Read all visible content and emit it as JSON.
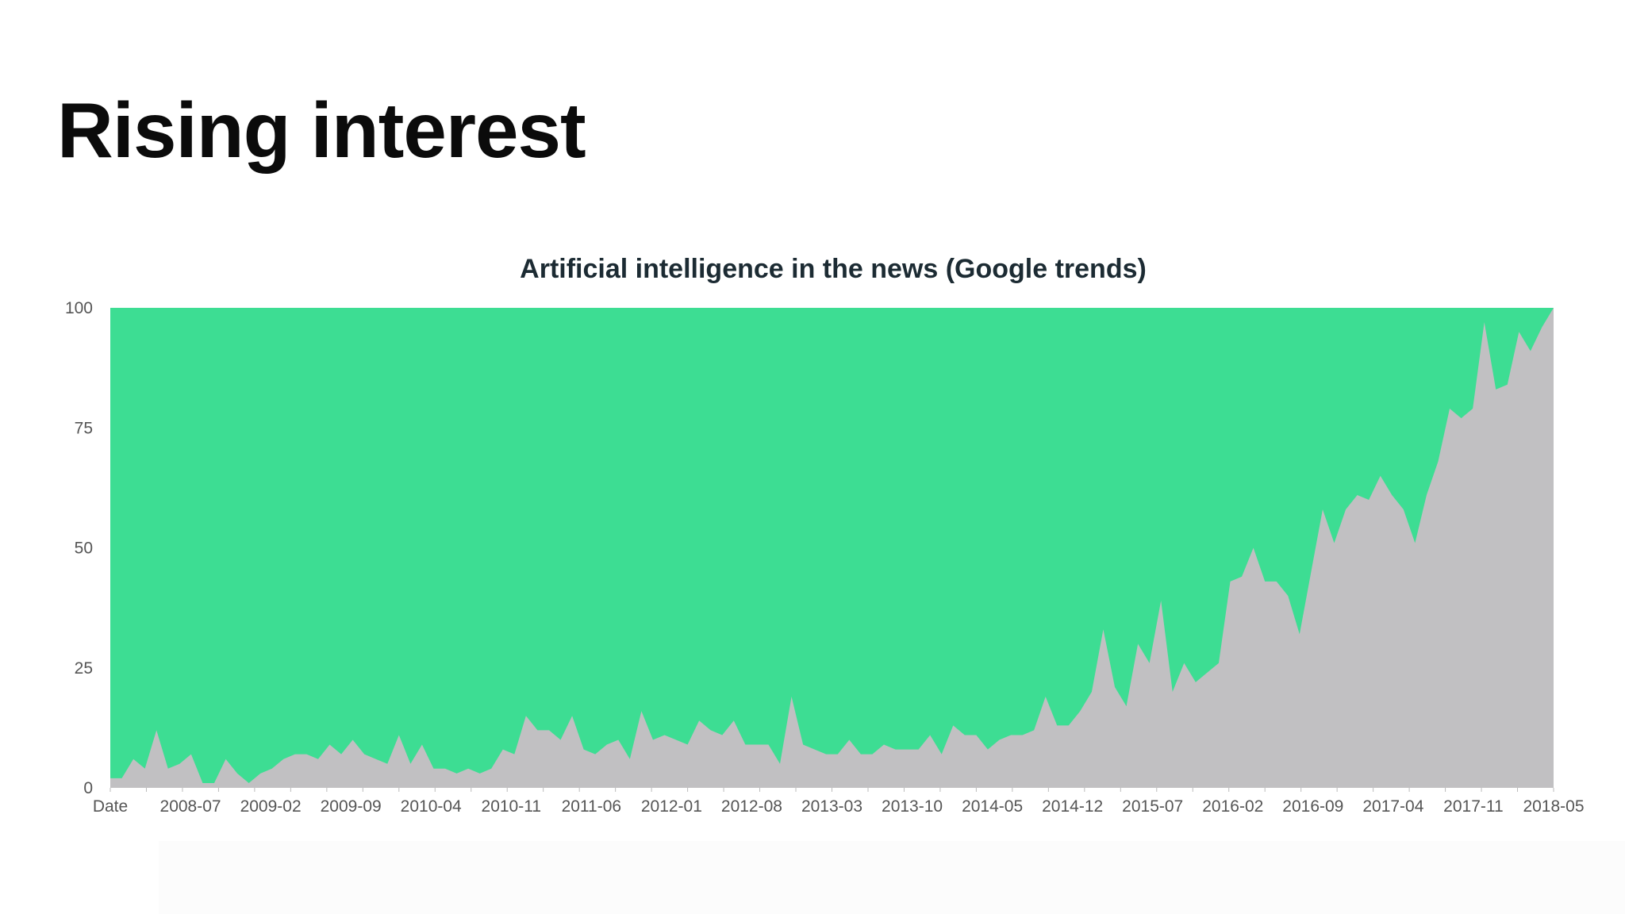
{
  "slide": {
    "title": "Rising interest"
  },
  "colors": {
    "green": "#3ddd93",
    "gray": "#c1c0c2",
    "axis_text": "#555555",
    "title_text": "#1c2b33"
  },
  "chart_data": {
    "type": "area",
    "title": "Artificial intelligence in the news (Google trends)",
    "xlabel": "Date",
    "ylabel": "",
    "ylim": [
      0,
      100
    ],
    "yticks": [
      0,
      25,
      50,
      75,
      100
    ],
    "grid": false,
    "legend": "none",
    "x_tick_labels": [
      "Date",
      "2008-07",
      "2009-02",
      "2009-09",
      "2010-04",
      "2010-11",
      "2011-06",
      "2012-01",
      "2012-08",
      "2013-03",
      "2013-10",
      "2014-05",
      "2014-12",
      "2015-07",
      "2016-02",
      "2016-09",
      "2017-04",
      "2017-11",
      "2018-05"
    ],
    "x_start": "2008-01",
    "x_end": "2018-05",
    "series": [
      {
        "values": [
          2,
          2,
          6,
          4,
          12,
          4,
          5,
          7,
          1,
          1,
          6,
          3,
          1,
          3,
          4,
          6,
          7,
          7,
          6,
          9,
          7,
          10,
          7,
          6,
          5,
          11,
          5,
          9,
          4,
          4,
          3,
          4,
          3,
          4,
          8,
          7,
          15,
          12,
          12,
          10,
          15,
          8,
          7,
          9,
          10,
          6,
          16,
          10,
          11,
          10,
          9,
          14,
          12,
          11,
          14,
          9,
          9,
          9,
          5,
          19,
          9,
          8,
          7,
          7,
          10,
          7,
          7,
          9,
          8,
          8,
          8,
          11,
          7,
          13,
          11,
          11,
          8,
          10,
          11,
          11,
          12,
          19,
          13,
          13,
          16,
          20,
          33,
          21,
          17,
          30,
          26,
          39,
          20,
          26,
          22,
          24,
          26,
          43,
          44,
          50,
          43,
          43,
          40,
          32,
          45,
          58,
          51,
          58,
          61,
          60,
          65,
          61,
          58,
          51,
          61,
          68,
          79,
          77,
          79,
          97,
          83,
          84,
          95,
          91,
          96,
          100
        ]
      }
    ]
  }
}
